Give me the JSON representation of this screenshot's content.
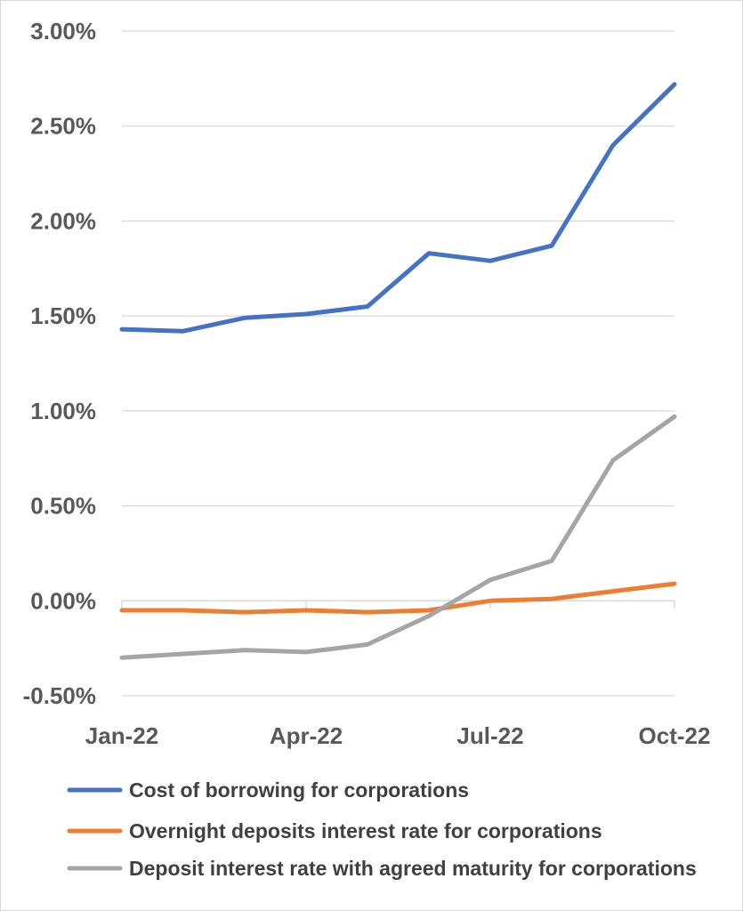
{
  "chart_data": {
    "type": "line",
    "x": [
      "Jan-22",
      "Feb-22",
      "Mar-22",
      "Apr-22",
      "May-22",
      "Jun-22",
      "Jul-22",
      "Aug-22",
      "Sep-22",
      "Oct-22"
    ],
    "x_tick_labels": [
      "Jan-22",
      "Apr-22",
      "Jul-22",
      "Oct-22"
    ],
    "y_tick_labels": [
      "3.00%",
      "2.50%",
      "2.00%",
      "1.50%",
      "1.00%",
      "0.50%",
      "0.00%",
      "-0.50%"
    ],
    "ylim": [
      -0.5,
      3.0
    ],
    "y_unit": "%",
    "grid": "horizontal",
    "legend_position": "bottom",
    "series": [
      {
        "name": "Cost of borrowing for corporations",
        "color": "#4472c4",
        "values": [
          1.43,
          1.42,
          1.49,
          1.51,
          1.55,
          1.83,
          1.79,
          1.87,
          2.4,
          2.72
        ]
      },
      {
        "name": "Overnight deposits interest rate for corporations",
        "color": "#ed7d31",
        "values": [
          -0.05,
          -0.05,
          -0.06,
          -0.05,
          -0.06,
          -0.05,
          0.0,
          0.01,
          0.05,
          0.09
        ]
      },
      {
        "name": "Deposit interest rate with agreed maturity for corporations",
        "color": "#a5a5a5",
        "values": [
          -0.3,
          -0.28,
          -0.26,
          -0.27,
          -0.23,
          -0.08,
          0.11,
          0.21,
          0.74,
          0.97
        ]
      }
    ]
  }
}
